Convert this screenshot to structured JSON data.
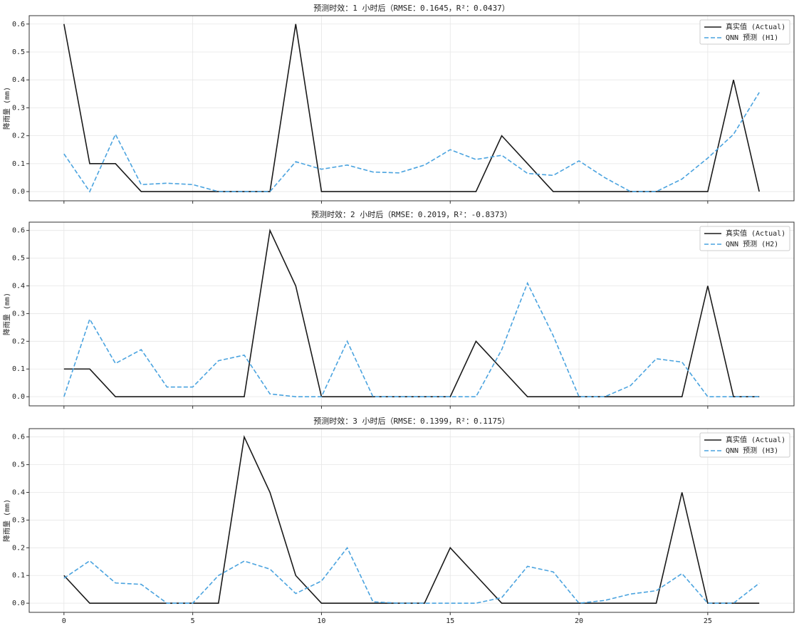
{
  "chart_data": [
    {
      "type": "line",
      "title": "预测时效：1 小时后（RMSE：0.1645，R²：0.0437）",
      "y_label": "降雨量 (mm)",
      "x": [
        0,
        1,
        2,
        3,
        4,
        5,
        6,
        7,
        8,
        9,
        10,
        11,
        12,
        13,
        14,
        15,
        16,
        17,
        18,
        19,
        20,
        21,
        22,
        23,
        24,
        25,
        26,
        27
      ],
      "xlim": [
        -1.35,
        28.35
      ],
      "ylim": [
        -0.033,
        0.63
      ],
      "xticks": [
        0,
        5,
        10,
        15,
        20,
        25
      ],
      "yticks": [
        {
          "value": 0,
          "label": "0.0"
        },
        0.1,
        0.2,
        0.3,
        0.4,
        0.5,
        0.6
      ],
      "grid": true,
      "legend": "upper right",
      "series": [
        {
          "name": "真实值 (Actual)",
          "color": "#1a1a1a",
          "dash": "solid",
          "values": [
            0.6,
            0.1,
            0.1,
            0,
            0,
            0,
            0,
            0,
            0,
            0.6,
            0,
            0,
            0,
            0,
            0,
            0,
            0,
            0.2,
            0.1,
            0,
            0,
            0,
            0,
            0,
            0,
            0,
            0.4,
            0
          ]
        },
        {
          "name": "QNN 预测 (H1)",
          "color": "#4aa3df",
          "dash": "dashed",
          "values": [
            0.135,
            0,
            0.205,
            0.025,
            0.03,
            0.025,
            0,
            0,
            0,
            0.107,
            0.08,
            0.095,
            0.07,
            0.067,
            0.095,
            0.15,
            0.115,
            0.13,
            0.065,
            0.058,
            0.11,
            0.05,
            0,
            0,
            0.045,
            0.12,
            0.205,
            0.355
          ]
        }
      ]
    },
    {
      "type": "line",
      "title": "预测时效：2 小时后（RMSE：0.2019，R²：-0.8373）",
      "y_label": "降雨量 (mm)",
      "x": [
        0,
        1,
        2,
        3,
        4,
        5,
        6,
        7,
        8,
        9,
        10,
        11,
        12,
        13,
        14,
        15,
        16,
        17,
        18,
        19,
        20,
        21,
        22,
        23,
        24,
        25,
        26,
        27
      ],
      "xlim": [
        -1.35,
        28.35
      ],
      "ylim": [
        -0.033,
        0.63
      ],
      "xticks": [
        0,
        5,
        10,
        15,
        20,
        25
      ],
      "yticks": [
        {
          "value": 0,
          "label": "0.0"
        },
        0.1,
        0.2,
        0.3,
        0.4,
        0.5,
        0.6
      ],
      "grid": true,
      "legend": "upper right",
      "series": [
        {
          "name": "真实值 (Actual)",
          "color": "#1a1a1a",
          "dash": "solid",
          "values": [
            0.1,
            0.1,
            0,
            0,
            0,
            0,
            0,
            0,
            0.6,
            0.4,
            0,
            0,
            0,
            0,
            0,
            0,
            0.2,
            0.1,
            0,
            0,
            0,
            0,
            0,
            0,
            0,
            0.4,
            0,
            0
          ]
        },
        {
          "name": "QNN 预测 (H2)",
          "color": "#4aa3df",
          "dash": "dashed",
          "values": [
            0,
            0.28,
            0.12,
            0.17,
            0.035,
            0.035,
            0.13,
            0.15,
            0.01,
            0,
            0,
            0.2,
            0,
            0,
            0,
            0,
            0,
            0.17,
            0.41,
            0.22,
            0,
            0,
            0.04,
            0.137,
            0.125,
            0,
            0,
            0
          ]
        }
      ]
    },
    {
      "type": "line",
      "title": "预测时效：3 小时后（RMSE：0.1399，R²：0.1175）",
      "y_label": "降雨量 (mm)",
      "x": [
        0,
        1,
        2,
        3,
        4,
        5,
        6,
        7,
        8,
        9,
        10,
        11,
        12,
        13,
        14,
        15,
        16,
        17,
        18,
        19,
        20,
        21,
        22,
        23,
        24,
        25,
        26,
        27
      ],
      "xlim": [
        -1.35,
        28.35
      ],
      "ylim": [
        -0.033,
        0.63
      ],
      "xticks": [
        0,
        5,
        10,
        15,
        20,
        25
      ],
      "yticks": [
        {
          "value": 0,
          "label": "0.0"
        },
        0.1,
        0.2,
        0.3,
        0.4,
        0.5,
        0.6
      ],
      "grid": true,
      "legend": "upper right",
      "show_xtick_labels": true,
      "series": [
        {
          "name": "真实值 (Actual)",
          "color": "#1a1a1a",
          "dash": "solid",
          "values": [
            0.1,
            0,
            0,
            0,
            0,
            0,
            0,
            0.6,
            0.4,
            0.1,
            0,
            0,
            0,
            0,
            0,
            0.2,
            0.1,
            0,
            0,
            0,
            0,
            0,
            0,
            0,
            0.4,
            0,
            0,
            0
          ]
        },
        {
          "name": "QNN 预测 (H3)",
          "color": "#4aa3df",
          "dash": "dashed",
          "values": [
            0.09,
            0.153,
            0.073,
            0.068,
            0,
            0,
            0.1,
            0.152,
            0.123,
            0.035,
            0.08,
            0.2,
            0.005,
            0,
            0,
            0,
            0,
            0.02,
            0.133,
            0.113,
            0,
            0.01,
            0.033,
            0.045,
            0.107,
            0,
            0,
            0.072
          ]
        }
      ]
    }
  ]
}
